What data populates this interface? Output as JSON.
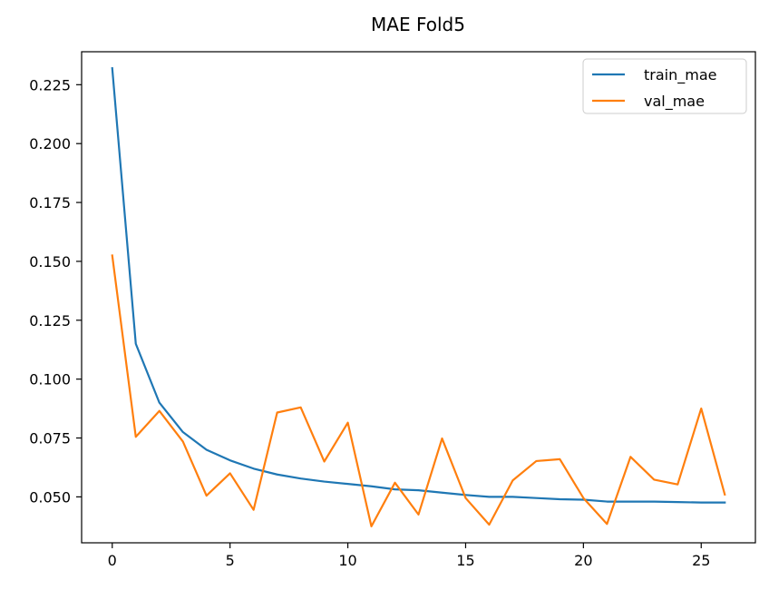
{
  "chart_data": {
    "type": "line",
    "title": "MAE Fold5",
    "xlabel": "",
    "ylabel": "",
    "xlim": [
      -1.3,
      27.3
    ],
    "ylim": [
      0.0305,
      0.239
    ],
    "xticks": [
      0,
      5,
      10,
      15,
      20,
      25
    ],
    "yticks": [
      0.05,
      0.075,
      0.1,
      0.125,
      0.15,
      0.175,
      0.2,
      0.225
    ],
    "xtick_labels": [
      "0",
      "5",
      "10",
      "15",
      "20",
      "25"
    ],
    "ytick_labels": [
      "0.050",
      "0.075",
      "0.100",
      "0.125",
      "0.150",
      "0.175",
      "0.200",
      "0.225"
    ],
    "grid": false,
    "legend_position": "top-right",
    "x": [
      0,
      1,
      2,
      3,
      4,
      5,
      6,
      7,
      8,
      9,
      10,
      11,
      12,
      13,
      14,
      15,
      16,
      17,
      18,
      19,
      20,
      21,
      22,
      23,
      24,
      25,
      26
    ],
    "series": [
      {
        "name": "train_mae",
        "color": "#1f77b4",
        "values": [
          0.232,
          0.115,
          0.09,
          0.0775,
          0.07,
          0.0655,
          0.062,
          0.0595,
          0.0578,
          0.0565,
          0.0555,
          0.0545,
          0.0532,
          0.0528,
          0.0518,
          0.0508,
          0.05,
          0.05,
          0.0495,
          0.049,
          0.0488,
          0.048,
          0.048,
          0.048,
          0.0478,
          0.0476,
          0.0476
        ]
      },
      {
        "name": "val_mae",
        "color": "#ff7f0e",
        "values": [
          0.1525,
          0.0755,
          0.0865,
          0.0735,
          0.0505,
          0.06,
          0.0445,
          0.0858,
          0.088,
          0.065,
          0.0815,
          0.0375,
          0.056,
          0.0425,
          0.0748,
          0.0495,
          0.0382,
          0.057,
          0.0652,
          0.066,
          0.0495,
          0.0385,
          0.067,
          0.0573,
          0.0553,
          0.0875,
          0.051
        ]
      }
    ]
  }
}
